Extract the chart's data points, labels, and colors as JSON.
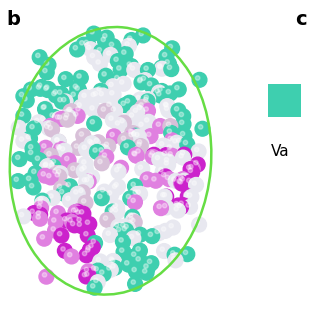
{
  "label_b": "b",
  "label_c": "c",
  "legend_color": "#3ecfaf",
  "legend_text": "Va",
  "bg_color": "#ffffff",
  "sphere_colors": {
    "teal": "#3ecfaf",
    "white": "#e8e8f0",
    "light_pink": "#d8c0d8",
    "magenta": "#cc22cc",
    "light_magenta": "#e080e0",
    "green_outline": "#66dd44"
  },
  "title_fontsize": 14,
  "legend_fontsize": 11,
  "figsize": [
    3.35,
    3.35
  ],
  "dpi": 100
}
